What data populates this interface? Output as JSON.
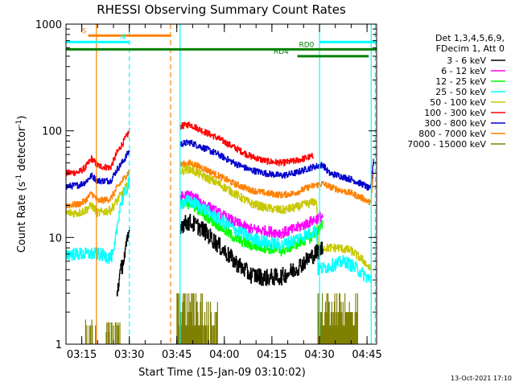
{
  "chart_data": {
    "type": "line",
    "title": "RHESSI Observing Summary Count Rates",
    "xlabel": "Start Time (15-Jan-09 03:10:02)",
    "ylabel_parts": [
      "Count Rate (s",
      "-1",
      " detector",
      "-1",
      ")"
    ],
    "y_scale": "log",
    "ylim": [
      1,
      1000
    ],
    "xlim_minutes": [
      0,
      98
    ],
    "y_ticks": [
      {
        "value": 1,
        "label": "1"
      },
      {
        "value": 10,
        "label": "10"
      },
      {
        "value": 100,
        "label": "100"
      },
      {
        "value": 1000,
        "label": "1000"
      }
    ],
    "x_ticks": [
      {
        "minute": 4.97,
        "label": "03:15"
      },
      {
        "minute": 19.97,
        "label": "03:30"
      },
      {
        "minute": 34.97,
        "label": "03:45"
      },
      {
        "minute": 49.97,
        "label": "04:00"
      },
      {
        "minute": 64.97,
        "label": "04:15"
      },
      {
        "minute": 79.97,
        "label": "04:30"
      },
      {
        "minute": 94.97,
        "label": "04:45"
      }
    ],
    "legend": {
      "placement": "right",
      "header": [
        "Det 1,3,4,5,6,9,",
        "FDecim 1, Att 0"
      ],
      "entries": [
        {
          "label": "3 - 6 keV",
          "color": "#000000"
        },
        {
          "label": "6 - 12 keV",
          "color": "#ff00ff"
        },
        {
          "label": "12 - 25 keV",
          "color": "#00ff00"
        },
        {
          "label": "25 - 50 keV",
          "color": "#00ffff"
        },
        {
          "label": "50 - 100 keV",
          "color": "#c8c800"
        },
        {
          "label": "100 - 300 keV",
          "color": "#ff0000"
        },
        {
          "label": "300 - 800 keV",
          "color": "#0000cc"
        },
        {
          "label": "800 - 7000 keV",
          "color": "#ff8000"
        },
        {
          "label": "7000 - 15000 keV",
          "color": "#808000"
        }
      ]
    },
    "series": [
      {
        "name": "100 - 300 keV",
        "color": "#ff0000",
        "noise": 0.03,
        "segments": [
          [
            [
              0,
              40
            ],
            [
              4,
              41
            ],
            [
              6,
              45
            ],
            [
              8,
              55
            ],
            [
              10,
              47
            ],
            [
              14,
              45
            ],
            [
              16,
              62
            ],
            [
              18,
              78
            ],
            [
              20,
              100
            ]
          ],
          [
            [
              36,
              110
            ],
            [
              39,
              115
            ],
            [
              43,
              100
            ],
            [
              48,
              85
            ],
            [
              53,
              70
            ],
            [
              58,
              58
            ],
            [
              63,
              52
            ],
            [
              68,
              50
            ],
            [
              72,
              52
            ],
            [
              78,
              58
            ]
          ]
        ]
      },
      {
        "name": "300 - 800 keV",
        "color": "#0000cc",
        "noise": 0.03,
        "segments": [
          [
            [
              0,
              30
            ],
            [
              4,
              31
            ],
            [
              6,
              33
            ],
            [
              8,
              38
            ],
            [
              10,
              34
            ],
            [
              14,
              34
            ],
            [
              16,
              43
            ],
            [
              18,
              52
            ],
            [
              20,
              65
            ]
          ],
          [
            [
              36,
              75
            ],
            [
              39,
              78
            ],
            [
              43,
              70
            ],
            [
              48,
              60
            ],
            [
              53,
              50
            ],
            [
              58,
              43
            ],
            [
              63,
              40
            ],
            [
              68,
              38
            ],
            [
              72,
              40
            ],
            [
              77,
              45
            ],
            [
              81,
              48
            ],
            [
              83,
              40
            ],
            [
              86,
              38
            ],
            [
              90,
              35
            ],
            [
              94,
              31
            ],
            [
              96,
              28
            ],
            [
              97,
              55
            ]
          ]
        ]
      },
      {
        "name": "800 - 7000 keV",
        "color": "#ff8000",
        "noise": 0.03,
        "segments": [
          [
            [
              0,
              20
            ],
            [
              4,
              20.5
            ],
            [
              6,
              22
            ],
            [
              8,
              26
            ],
            [
              10,
              22
            ],
            [
              14,
              23
            ],
            [
              16,
              29
            ],
            [
              18,
              35
            ],
            [
              20,
              42
            ]
          ],
          [
            [
              36,
              48
            ],
            [
              39,
              50
            ],
            [
              43,
              45
            ],
            [
              48,
              38
            ],
            [
              53,
              32
            ],
            [
              58,
              28
            ],
            [
              63,
              26
            ],
            [
              68,
              25
            ],
            [
              72,
              26
            ],
            [
              77,
              30
            ],
            [
              81,
              32
            ],
            [
              83,
              30
            ],
            [
              86,
              28
            ],
            [
              90,
              26
            ],
            [
              94,
              23
            ],
            [
              96,
              21
            ],
            [
              97,
              40
            ]
          ]
        ]
      },
      {
        "name": "50 - 100 keV",
        "color": "#c8c800",
        "noise": 0.04,
        "segments": [
          [
            [
              0,
              17
            ],
            [
              4,
              17
            ],
            [
              6,
              18
            ],
            [
              8,
              20
            ],
            [
              10,
              17
            ],
            [
              14,
              18
            ],
            [
              16,
              22
            ],
            [
              18,
              27
            ],
            [
              20,
              33
            ]
          ],
          [
            [
              36,
              42
            ],
            [
              39,
              44
            ],
            [
              43,
              38
            ],
            [
              48,
              32
            ],
            [
              53,
              26
            ],
            [
              58,
              21
            ],
            [
              63,
              19
            ],
            [
              68,
              18
            ],
            [
              72,
              19
            ],
            [
              77,
              21
            ],
            [
              79,
              22
            ],
            [
              79.5,
              8
            ],
            [
              86,
              8
            ],
            [
              90,
              7.5
            ],
            [
              94,
              6
            ],
            [
              96,
              5
            ]
          ]
        ]
      },
      {
        "name": "6 - 12 keV",
        "color": "#ff00ff",
        "noise": 0.05,
        "segments": [
          [
            [
              36,
              24
            ],
            [
              39,
              25
            ],
            [
              43,
              21
            ],
            [
              48,
              17
            ],
            [
              53,
              14
            ],
            [
              58,
              12
            ],
            [
              63,
              11.5
            ],
            [
              68,
              11
            ],
            [
              72,
              12
            ],
            [
              77,
              14
            ],
            [
              81,
              16
            ]
          ]
        ]
      },
      {
        "name": "12 - 25 keV",
        "color": "#00ff00",
        "noise": 0.05,
        "segments": [
          [
            [
              36,
              20
            ],
            [
              39,
              21
            ],
            [
              43,
              17
            ],
            [
              48,
              13
            ],
            [
              53,
              10
            ],
            [
              58,
              8.5
            ],
            [
              63,
              8
            ],
            [
              68,
              7.5
            ],
            [
              72,
              8.5
            ],
            [
              77,
              10
            ],
            [
              81,
              13
            ]
          ]
        ]
      },
      {
        "name": "25 - 50 keV",
        "color": "#00ffff",
        "noise": 0.06,
        "segments": [
          [
            [
              0,
              7
            ],
            [
              4,
              7
            ],
            [
              6,
              7
            ],
            [
              8,
              7
            ],
            [
              10,
              7
            ],
            [
              14,
              6.5
            ],
            [
              15,
              7
            ],
            [
              17,
              20
            ],
            [
              19,
              28
            ],
            [
              20,
              35
            ]
          ],
          [
            [
              36,
              21
            ],
            [
              39,
              22
            ],
            [
              43,
              19
            ],
            [
              48,
              15
            ],
            [
              53,
              12
            ],
            [
              58,
              10
            ],
            [
              63,
              9
            ],
            [
              68,
              8.5
            ],
            [
              72,
              9.5
            ],
            [
              77,
              11
            ],
            [
              79,
              12
            ],
            [
              79.5,
              5
            ],
            [
              84,
              5.5
            ],
            [
              88,
              6
            ],
            [
              92,
              5
            ],
            [
              96,
              4
            ]
          ]
        ]
      },
      {
        "name": "3 - 6 keV",
        "color": "#000000",
        "noise": 0.08,
        "segments": [
          [
            [
              16,
              3
            ],
            [
              17,
              4.5
            ],
            [
              18,
              6
            ],
            [
              19,
              8
            ],
            [
              20,
              12
            ]
          ],
          [
            [
              36,
              13
            ],
            [
              39,
              14
            ],
            [
              43,
              12
            ],
            [
              48,
              8.5
            ],
            [
              53,
              6
            ],
            [
              58,
              4.5
            ],
            [
              63,
              4.2
            ],
            [
              68,
              4.3
            ],
            [
              72,
              5
            ],
            [
              77,
              6.5
            ],
            [
              81,
              8
            ]
          ]
        ]
      },
      {
        "name": "7000 - 15000 keV",
        "color": "#808000",
        "noise": 0,
        "segments": []
      }
    ],
    "background_bursts": [
      {
        "from": 6,
        "to": 9.5,
        "levels": [
          1,
          1.7,
          1,
          1.5
        ]
      },
      {
        "from": 12.5,
        "to": 14.5,
        "levels": [
          1.3,
          1.6,
          1
        ]
      },
      {
        "from": 15,
        "to": 17,
        "levels": [
          1,
          1.6,
          1,
          1.5
        ]
      },
      {
        "from": 35,
        "to": 43,
        "levels": [
          2,
          3,
          1.5,
          2.5,
          3
        ]
      },
      {
        "from": 43,
        "to": 48,
        "levels": [
          2,
          2.5,
          1.5,
          1
        ]
      },
      {
        "from": 79.5,
        "to": 92,
        "levels": [
          2,
          3,
          2,
          2.5,
          1.5,
          2
        ]
      }
    ],
    "flags": [
      {
        "label": "S",
        "color": "#ff8000",
        "from": 7,
        "to": 33,
        "y": 780,
        "label_at": 5
      },
      {
        "label": "N",
        "color": "#00ffff",
        "from": 0,
        "to": 20,
        "y": 680,
        "label_at": 17
      },
      {
        "label": "N",
        "color": "#00ffff",
        "from": 80,
        "to": 98,
        "y": 680,
        "label_at": null
      },
      {
        "label": "RD0",
        "color": "#008000",
        "from": 0,
        "to": 98,
        "y": 580,
        "label_at": 73.5
      },
      {
        "label": "RD4",
        "color": "#008000",
        "from": 73,
        "to": 95.5,
        "y": 500,
        "label_at": 65.5
      }
    ],
    "vlines": [
      {
        "minute": 9.6,
        "color": "#ff8000",
        "dashed": false
      },
      {
        "minute": 33.0,
        "color": "#ff8000",
        "dashed": true
      },
      {
        "minute": 20.0,
        "color": "#00ffff",
        "dashed": true
      },
      {
        "minute": 36.0,
        "color": "#00ffff",
        "dashed": false
      },
      {
        "minute": 80.0,
        "color": "#00ffff",
        "dashed": false
      },
      {
        "minute": 96.3,
        "color": "#00ffff",
        "dashed": false
      },
      {
        "minute": 97.6,
        "color": "#00ffff",
        "dashed": true
      }
    ],
    "timestamp": "13-Oct-2021 17:10"
  }
}
